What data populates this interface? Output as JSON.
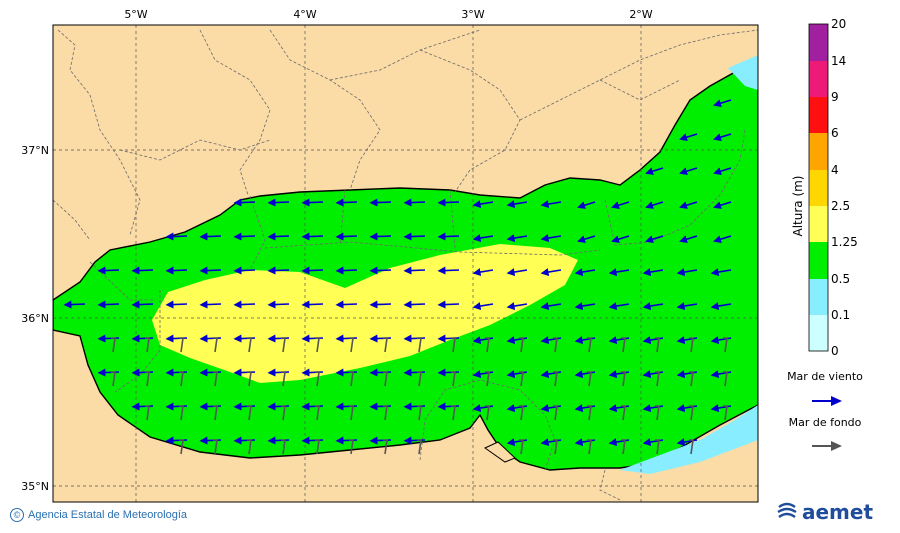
{
  "map": {
    "lon_labels": [
      "5°W",
      "4°W",
      "3°W",
      "2°W"
    ],
    "lat_labels": [
      "37°N",
      "36°N",
      "35°N"
    ]
  },
  "legend": {
    "title": "Altura (m)",
    "levels": [
      "20",
      "14",
      "9",
      "6",
      "4",
      "2.5",
      "1.25",
      "0.5",
      "0.1",
      "0"
    ],
    "bands": [
      {
        "color": "#a020a0"
      },
      {
        "color": "#ee1a78"
      },
      {
        "color": "#ff1010"
      },
      {
        "color": "#ffa500"
      },
      {
        "color": "#ffd700"
      },
      {
        "color": "#ffff55"
      },
      {
        "color": "#00ee00"
      },
      {
        "color": "#88eeff"
      },
      {
        "color": "#ccffff"
      }
    ],
    "wind_label": "Mar de viento",
    "swell_label": "Mar de fondo",
    "wind_color": "#0000cc",
    "swell_color": "#555555"
  },
  "colors": {
    "land": "#fbdba6",
    "sea_green": "#00ee00",
    "sea_yellow": "#ffff55",
    "sea_cyan": "#88eeff"
  },
  "footer": {
    "credit": "Agencia Estatal de Meteorología",
    "brand": "aemet"
  }
}
